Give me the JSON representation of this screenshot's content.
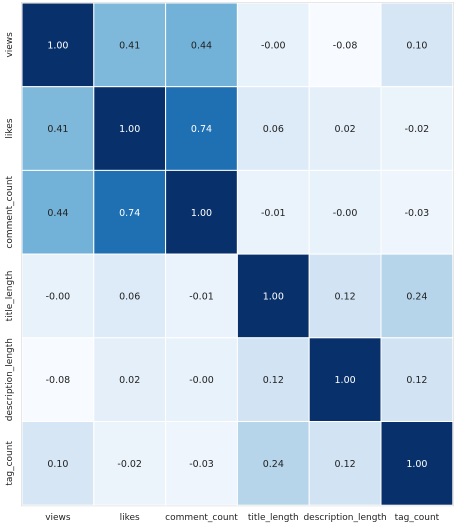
{
  "chart_data": {
    "type": "heatmap",
    "title": "",
    "xlabel": "",
    "ylabel": "",
    "x_categories": [
      "views",
      "likes",
      "comment_count",
      "title_length",
      "description_length",
      "tag_count"
    ],
    "y_categories": [
      "views",
      "likes",
      "comment_count",
      "title_length",
      "description_length",
      "tag_count"
    ],
    "values": [
      [
        1.0,
        0.41,
        0.44,
        -0.0,
        -0.08,
        0.1
      ],
      [
        0.41,
        1.0,
        0.74,
        0.06,
        0.02,
        -0.02
      ],
      [
        0.44,
        0.74,
        1.0,
        -0.01,
        -0.0,
        -0.03
      ],
      [
        -0.0,
        0.06,
        -0.01,
        1.0,
        0.12,
        0.24
      ],
      [
        -0.08,
        0.02,
        -0.0,
        0.12,
        1.0,
        0.12
      ],
      [
        0.1,
        -0.02,
        -0.03,
        0.24,
        0.12,
        1.0
      ]
    ],
    "value_labels": [
      [
        "1.00",
        "0.41",
        "0.44",
        "-0.00",
        "-0.08",
        "0.10"
      ],
      [
        "0.41",
        "1.00",
        "0.74",
        "0.06",
        "0.02",
        "-0.02"
      ],
      [
        "0.44",
        "0.74",
        "1.00",
        "-0.01",
        "-0.00",
        "-0.03"
      ],
      [
        "-0.00",
        "0.06",
        "-0.01",
        "1.00",
        "0.12",
        "0.24"
      ],
      [
        "-0.08",
        "0.02",
        "-0.00",
        "0.12",
        "1.00",
        "0.12"
      ],
      [
        "0.10",
        "-0.02",
        "-0.03",
        "0.24",
        "0.12",
        "1.00"
      ]
    ],
    "colormap": "Blues",
    "value_range": [
      -0.08,
      1.0
    ],
    "grid": true,
    "colors": {
      "low": "#e9f2fb",
      "mid": "#6aaed6",
      "high": "#08306b",
      "cell_border": "#ffffff",
      "text_dark": "#222222",
      "text_light": "#ffffff"
    }
  }
}
